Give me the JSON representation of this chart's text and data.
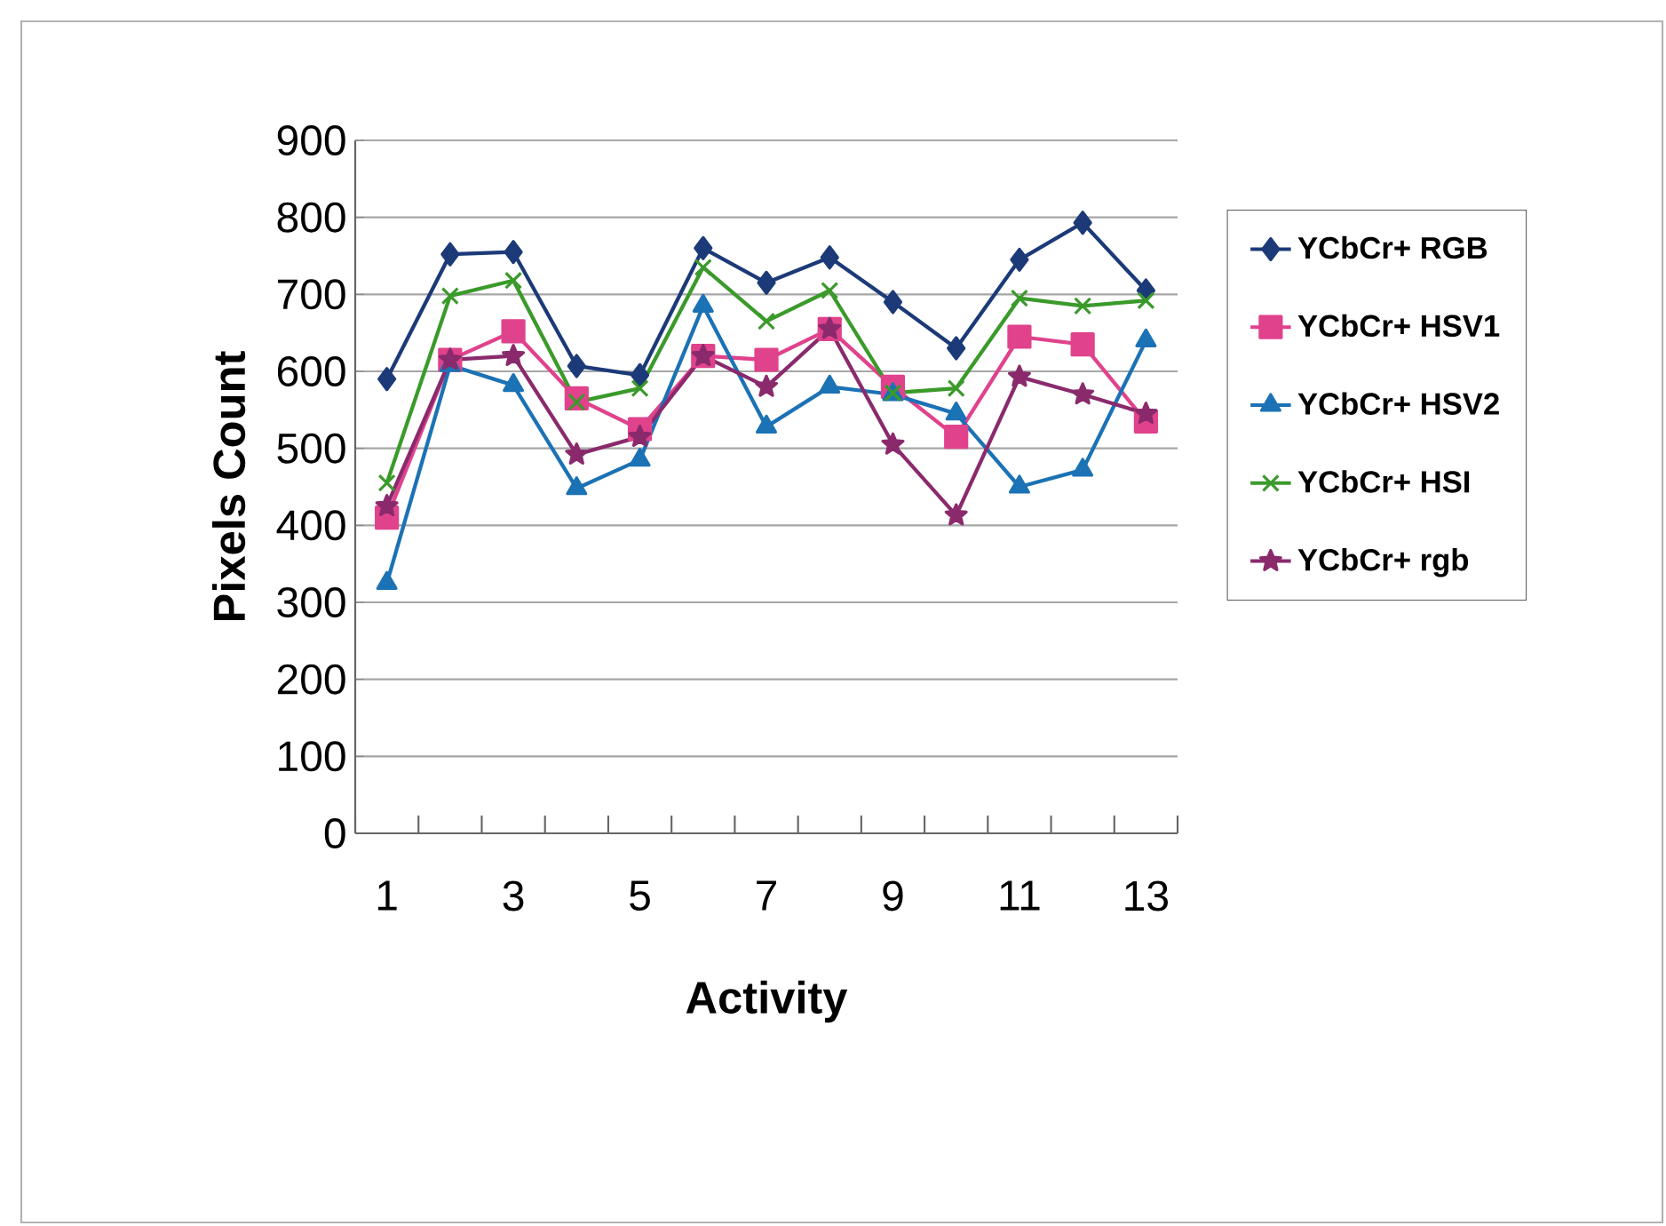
{
  "chart_data": {
    "type": "line",
    "xlabel": "Activity",
    "ylabel": "Pixels Count",
    "categories": [
      "1",
      null,
      "3",
      null,
      "5",
      null,
      "7",
      null,
      "9",
      null,
      "11",
      null,
      "13"
    ],
    "ylim": [
      0,
      900
    ],
    "yticks": [
      0,
      100,
      200,
      300,
      400,
      500,
      600,
      700,
      800,
      900
    ],
    "grid": "y",
    "legend": "right",
    "series": [
      {
        "name": "YCbCr+ RGB",
        "color": "#1c3a78",
        "marker": "diamond",
        "values": [
          590,
          752,
          755,
          607,
          595,
          760,
          715,
          748,
          690,
          630,
          745,
          793,
          705
        ]
      },
      {
        "name": "YCbCr+ HSV1",
        "color": "#e0428c",
        "marker": "square",
        "values": [
          410,
          615,
          652,
          565,
          525,
          620,
          615,
          655,
          580,
          515,
          645,
          635,
          535
        ]
      },
      {
        "name": "YCbCr+ HSV2",
        "color": "#1b72b5",
        "marker": "triangle",
        "values": [
          325,
          608,
          582,
          448,
          485,
          685,
          528,
          580,
          570,
          545,
          450,
          472,
          640
        ]
      },
      {
        "name": "YCbCr+ HSI",
        "color": "#3a9a2a",
        "marker": "cross",
        "values": [
          455,
          698,
          718,
          560,
          578,
          735,
          665,
          705,
          572,
          578,
          695,
          685,
          692
        ]
      },
      {
        "name": "YCbCr+ rgb",
        "color": "#8a2a6c",
        "marker": "star",
        "values": [
          425,
          615,
          620,
          492,
          515,
          620,
          580,
          655,
          505,
          413,
          593,
          570,
          545
        ]
      }
    ]
  }
}
